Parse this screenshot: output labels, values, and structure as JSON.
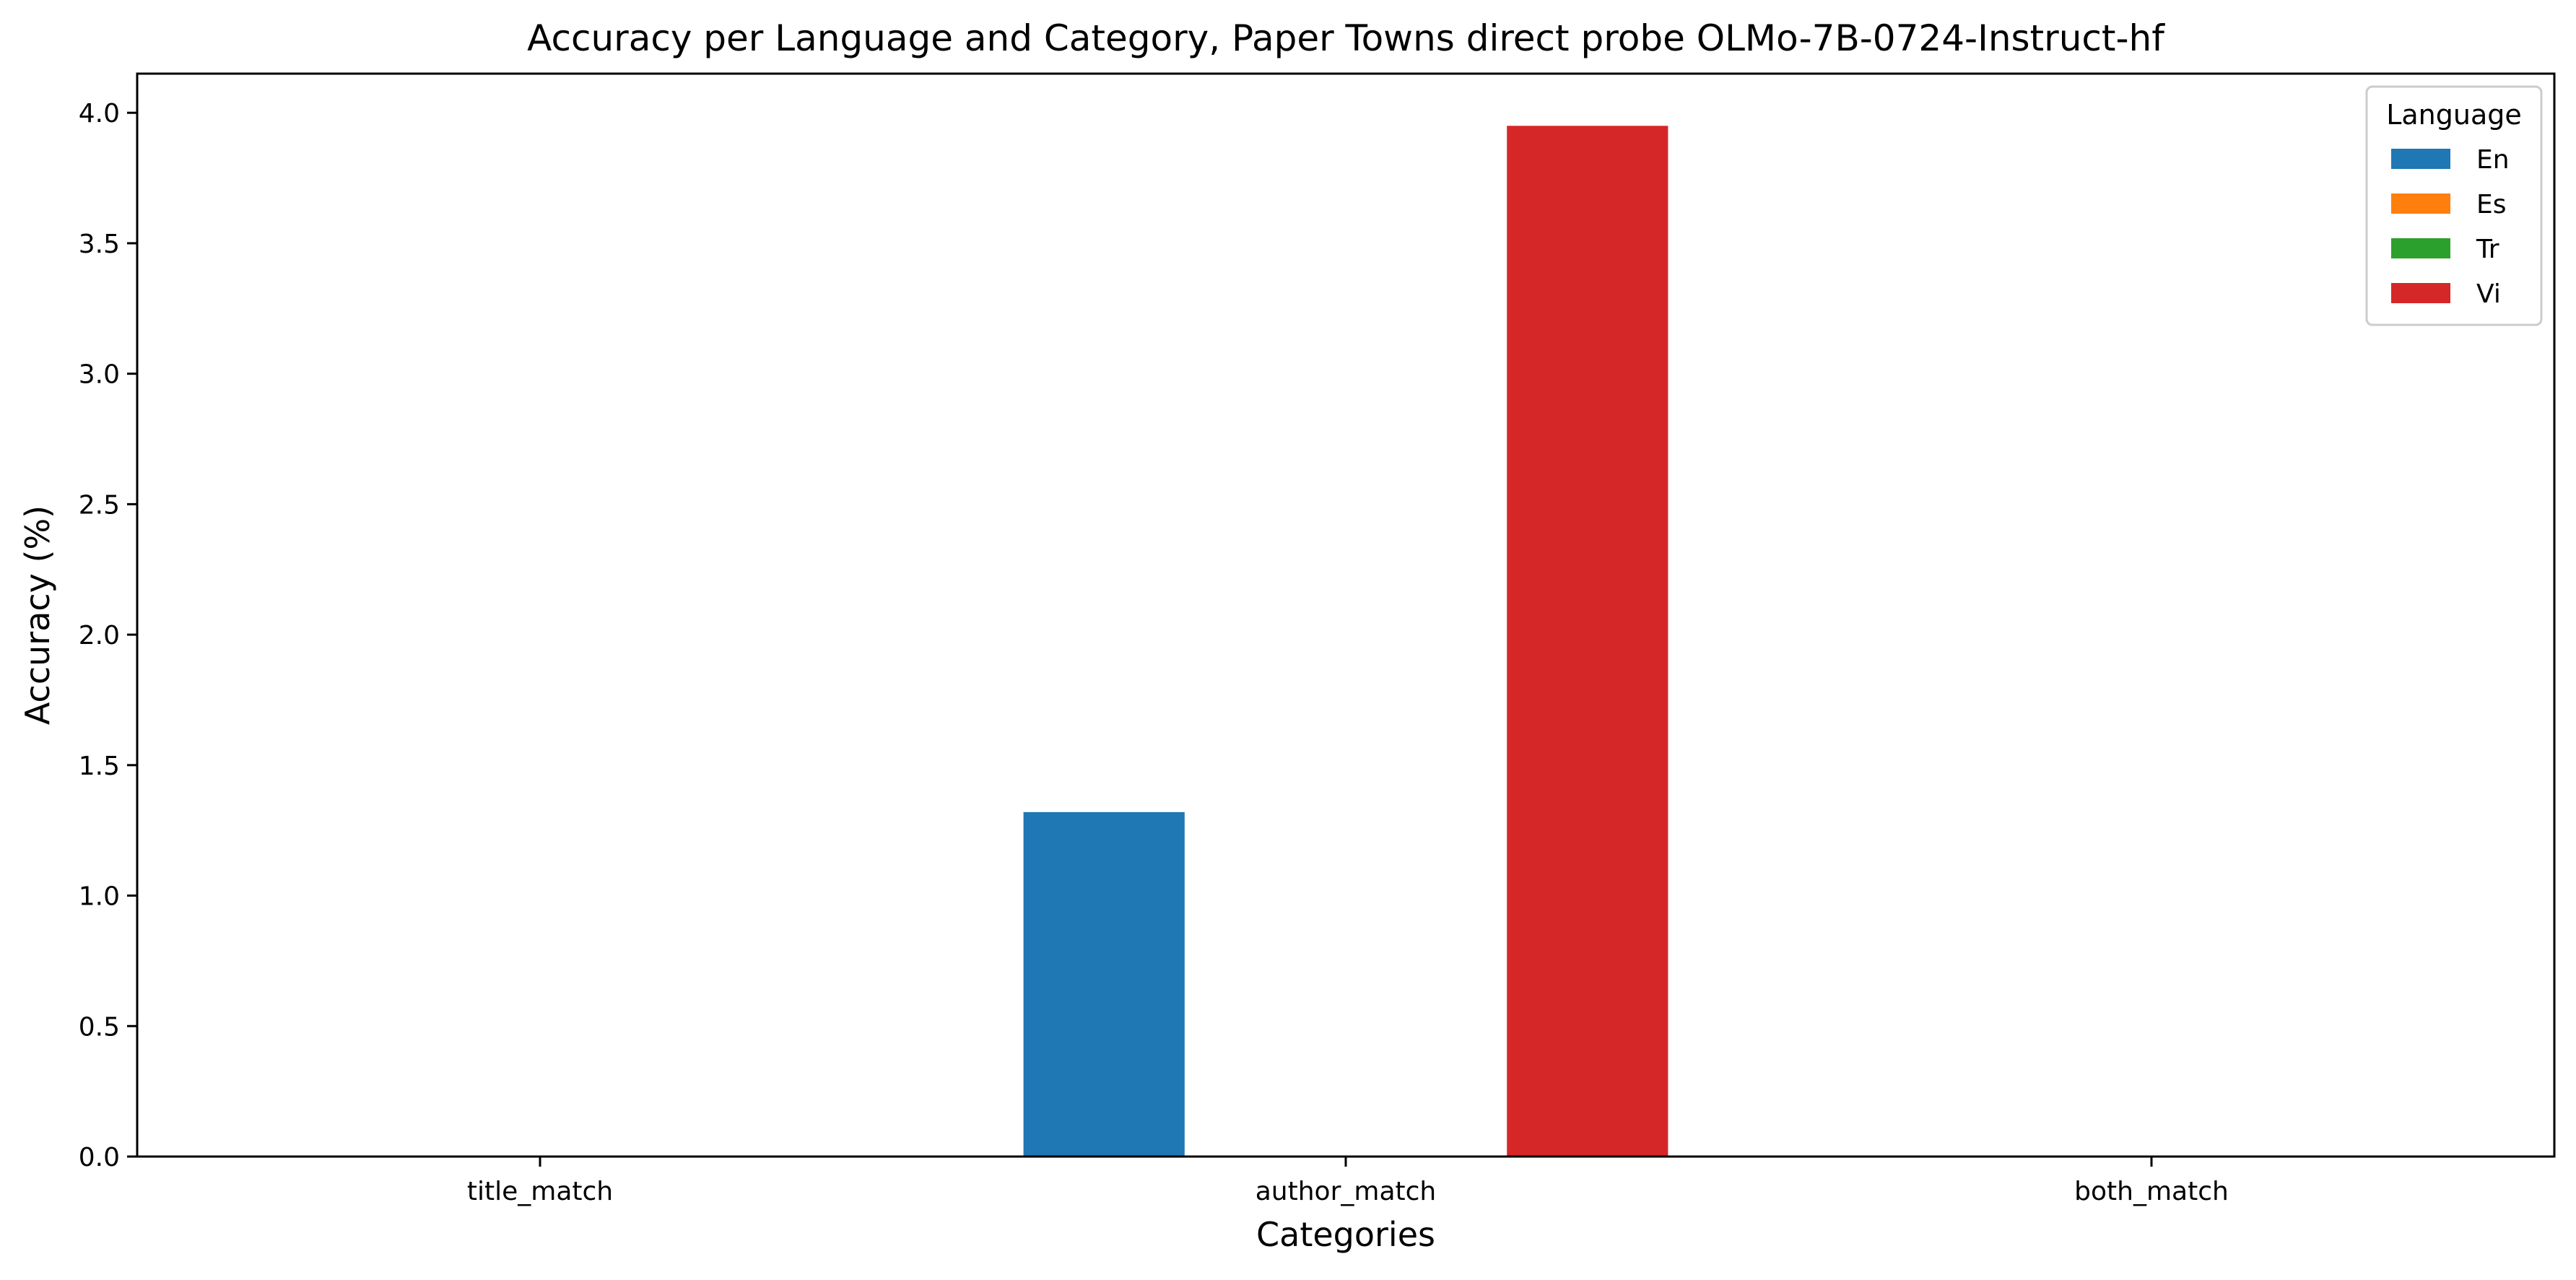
{
  "chart_data": {
    "type": "bar",
    "title": "Accuracy per Language and Category, Paper Towns direct probe OLMo-7B-0724-Instruct-hf",
    "xlabel": "Categories",
    "ylabel": "Accuracy (%)",
    "categories": [
      "title_match",
      "author_match",
      "both_match"
    ],
    "ylim": [
      0,
      4.15
    ],
    "yticks": [
      "0.0",
      "0.5",
      "1.0",
      "1.5",
      "2.0",
      "2.5",
      "3.0",
      "3.5",
      "4.0"
    ],
    "grid": false,
    "legend": {
      "title": "Language",
      "placement": "top-right"
    },
    "series": [
      {
        "name": "En",
        "color": "#1f77b4",
        "values": [
          0,
          1.32,
          0
        ]
      },
      {
        "name": "Es",
        "color": "#ff7f0e",
        "values": [
          0,
          0,
          0
        ]
      },
      {
        "name": "Tr",
        "color": "#2ca02c",
        "values": [
          0,
          0,
          0
        ]
      },
      {
        "name": "Vi",
        "color": "#d62728",
        "values": [
          0,
          3.95,
          0
        ]
      }
    ]
  }
}
